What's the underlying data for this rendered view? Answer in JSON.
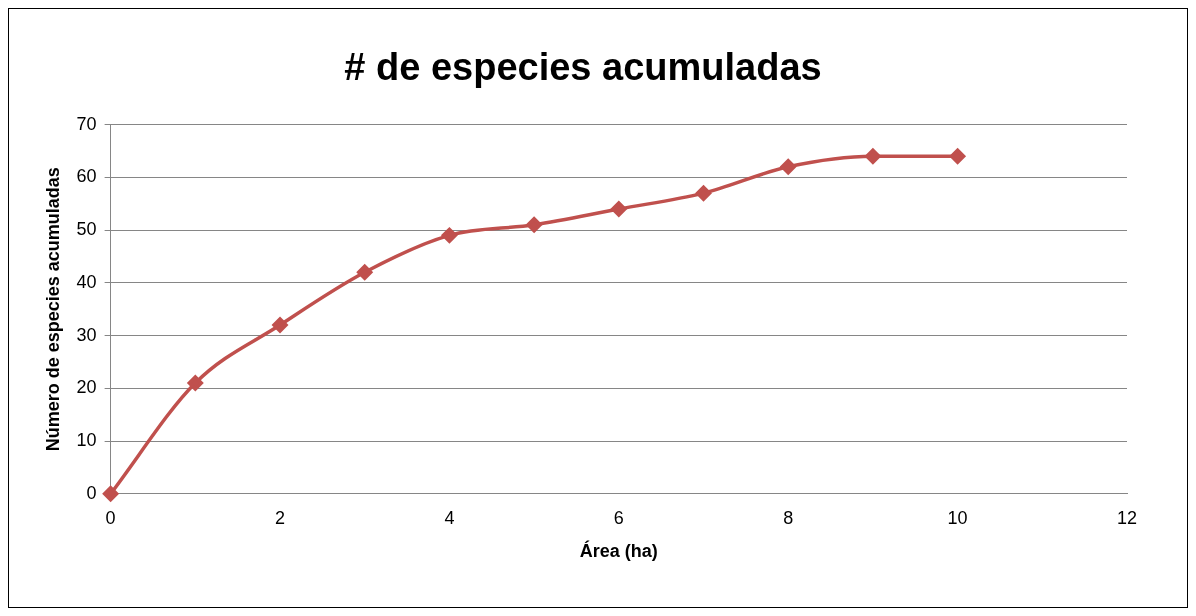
{
  "chart_data": {
    "type": "line",
    "title": "# de especies acumuladas",
    "xlabel": "Área (ha)",
    "ylabel": "Número de especies acumuladas",
    "series": [
      {
        "color": "#c0504d",
        "x": [
          0,
          1,
          2,
          3,
          4,
          5,
          6,
          7,
          8,
          9,
          10
        ],
        "values": [
          0,
          21,
          32,
          42,
          49,
          51,
          54,
          57,
          62,
          64,
          64
        ]
      }
    ],
    "xlim": [
      0,
      12
    ],
    "xticks": [
      0,
      2,
      4,
      6,
      8,
      10,
      12
    ],
    "ylim": [
      0,
      70
    ],
    "yticks": [
      0,
      10,
      20,
      30,
      40,
      50,
      60,
      70
    ],
    "grid": "y",
    "legend": false,
    "marker": "diamond",
    "line_style": "solid"
  }
}
